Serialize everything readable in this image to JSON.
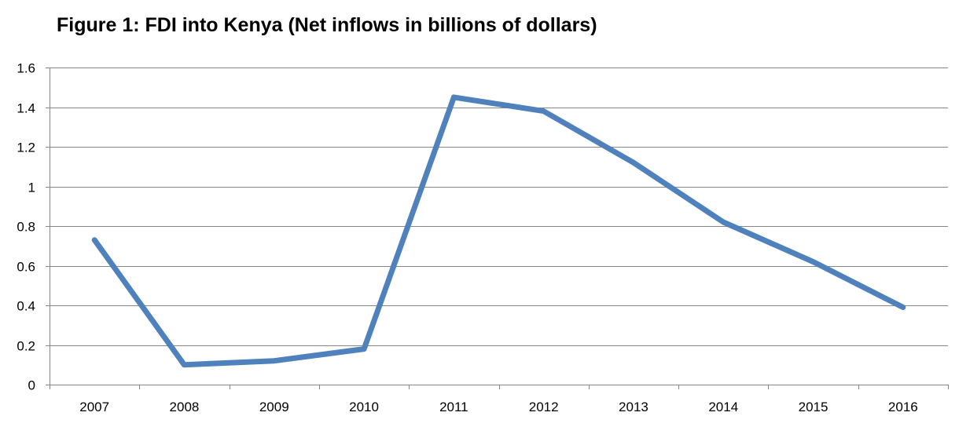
{
  "chart_data": {
    "type": "line",
    "title": "Figure 1: FDI into Kenya (Net inflows in billions of dollars)",
    "xlabel": "",
    "ylabel": "",
    "categories": [
      "2007",
      "2008",
      "2009",
      "2010",
      "2011",
      "2012",
      "2013",
      "2014",
      "2015",
      "2016"
    ],
    "series": [
      {
        "values": [
          0.73,
          0.1,
          0.12,
          0.18,
          1.45,
          1.38,
          1.12,
          0.82,
          0.62,
          0.39
        ],
        "color": "#4F81BD"
      }
    ],
    "ylim": [
      0,
      1.6
    ],
    "yticks": [
      0,
      0.2,
      0.4,
      0.6,
      0.8,
      1,
      1.2,
      1.4,
      1.6
    ],
    "ytick_labels": [
      "0",
      "0.2",
      "0.4",
      "0.6",
      "0.8",
      "1",
      "1.2",
      "1.4",
      "1.6"
    ],
    "grid": true,
    "legend": "none",
    "gridline_color": "#868686",
    "axis_color": "#868686"
  }
}
